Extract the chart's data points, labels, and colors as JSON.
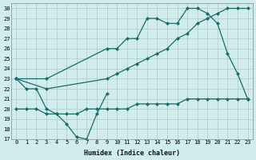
{
  "xlabel": "Humidex (Indice chaleur)",
  "background_color": "#d0ecec",
  "grid_color": "#b0c8c8",
  "line_color": "#1a6b6b",
  "xlim": [
    -0.5,
    23.5
  ],
  "ylim": [
    17,
    30.5
  ],
  "yticks": [
    17,
    18,
    19,
    20,
    21,
    22,
    23,
    24,
    25,
    26,
    27,
    28,
    29,
    30
  ],
  "xticks": [
    0,
    1,
    2,
    3,
    4,
    5,
    6,
    7,
    8,
    9,
    10,
    11,
    12,
    13,
    14,
    15,
    16,
    17,
    18,
    19,
    20,
    21,
    22,
    23
  ],
  "series1_x": [
    0,
    1,
    2,
    3,
    4,
    5,
    6,
    7,
    8,
    9
  ],
  "series1_y": [
    23,
    22,
    22,
    20,
    19.5,
    18.5,
    17.2,
    17,
    19.5,
    21.5
  ],
  "series2_x": [
    0,
    1,
    2,
    3,
    4,
    5,
    6,
    7,
    8,
    9,
    10,
    11,
    12,
    13,
    14,
    15,
    16,
    17,
    18,
    19,
    20,
    21,
    22,
    23
  ],
  "series2_y": [
    20,
    20,
    20,
    19.5,
    19.5,
    19.5,
    19.5,
    20,
    20,
    20,
    20,
    20,
    20.5,
    20.5,
    20.5,
    20.5,
    20.5,
    21,
    21,
    21,
    21,
    21,
    21,
    21
  ],
  "series3_x": [
    0,
    3,
    9,
    10,
    11,
    12,
    13,
    14,
    15,
    16,
    17,
    18,
    19,
    20,
    21,
    22,
    23
  ],
  "series3_y": [
    23,
    23,
    26,
    26,
    27,
    27,
    29,
    29,
    28.5,
    28.5,
    30,
    30,
    29.5,
    28.5,
    25.5,
    23.5,
    21
  ],
  "series4_x": [
    0,
    3,
    9,
    10,
    11,
    12,
    13,
    14,
    15,
    16,
    17,
    18,
    19,
    20,
    21,
    22,
    23
  ],
  "series4_y": [
    23,
    22,
    23,
    23.5,
    24,
    24.5,
    25,
    25.5,
    26,
    27,
    27.5,
    28.5,
    29,
    29.5,
    30,
    30,
    30
  ]
}
